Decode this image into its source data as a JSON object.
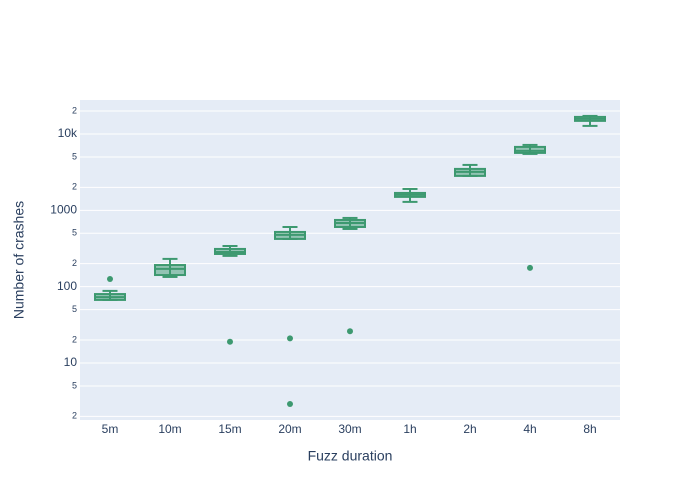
{
  "chart_data": {
    "type": "box",
    "x_label": "Fuzz duration",
    "y_label": "Number of crashes",
    "categories": [
      "5m",
      "10m",
      "15m",
      "20m",
      "30m",
      "1h",
      "2h",
      "4h",
      "8h"
    ],
    "color": "#3d9970",
    "log_y": true,
    "grid": true,
    "ylim": [
      1.79,
      27900
    ],
    "yticks": [
      2,
      5,
      10,
      {
        "value": 20,
        "label": "2"
      },
      {
        "value": 50,
        "label": "5"
      },
      100,
      {
        "value": 200,
        "label": "2"
      },
      {
        "value": 500,
        "label": "5"
      },
      1000,
      {
        "value": 2000,
        "label": "2"
      },
      {
        "value": 5000,
        "label": "5"
      },
      {
        "value": 10000,
        "label": "10k"
      },
      {
        "value": 20000,
        "label": "2"
      }
    ],
    "boxes": [
      {
        "min": 67,
        "q1": 67,
        "median": 73,
        "q3": 80,
        "max": 88,
        "outliers": [
          126
        ]
      },
      {
        "min": 134,
        "q1": 142,
        "median": 171,
        "q3": 192,
        "max": 231,
        "outliers": []
      },
      {
        "min": 253,
        "q1": 268,
        "median": 285,
        "q3": 312,
        "max": 341,
        "outliers": [
          19
        ]
      },
      {
        "min": 422,
        "q1": 422,
        "median": 476,
        "q3": 521,
        "max": 605,
        "outliers": [
          21,
          2.9
        ]
      },
      {
        "min": 570,
        "q1": 605,
        "median": 683,
        "q3": 748,
        "max": 795,
        "outliers": [
          26
        ]
      },
      {
        "min": 1290,
        "q1": 1500,
        "median": 1592,
        "q3": 1690,
        "max": 1905,
        "outliers": []
      },
      {
        "min": 2825,
        "q1": 2825,
        "median": 3187,
        "q3": 3490,
        "max": 3935,
        "outliers": []
      },
      {
        "min": 5485,
        "q1": 5655,
        "median": 6010,
        "q3": 6776,
        "max": 7195,
        "outliers": [
          176
        ]
      },
      {
        "min": 12770,
        "q1": 14860,
        "median": 15770,
        "q3": 16750,
        "max": 17260,
        "outliers": []
      }
    ]
  }
}
